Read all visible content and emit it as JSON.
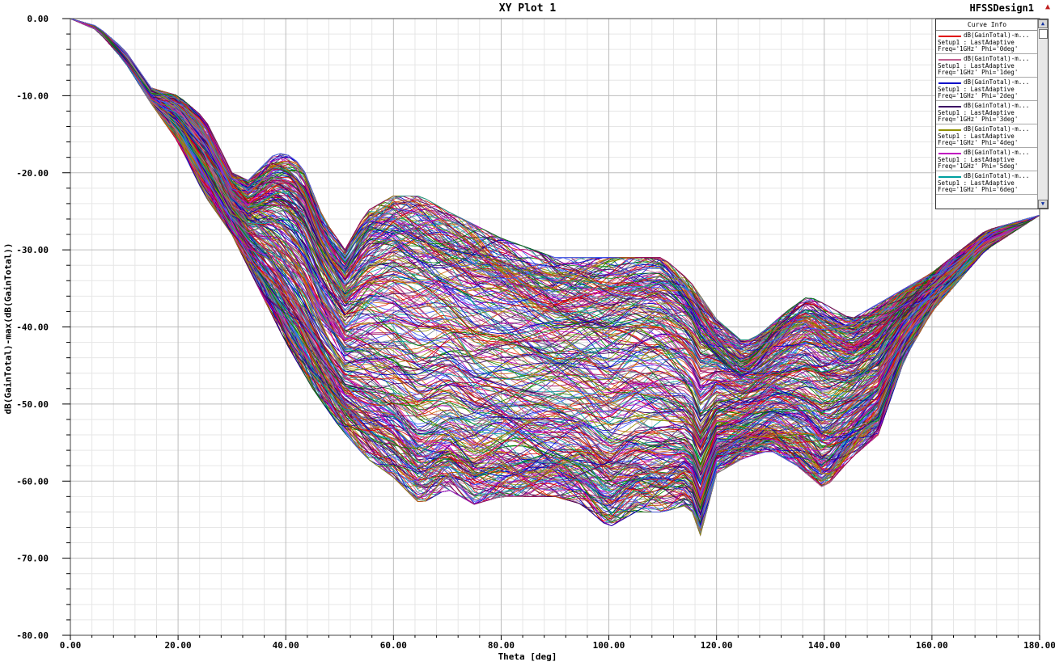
{
  "header": {
    "title": "XY Plot 1",
    "design": "HFSSDesign1",
    "corner_icon": "triangle-up-icon"
  },
  "chart_data": {
    "type": "line",
    "title": "XY Plot 1",
    "xlabel": "Theta [deg]",
    "ylabel": "dB(GainTotal)-max(dB(GainTotal))",
    "xlim": [
      0,
      180
    ],
    "ylim": [
      -80,
      0
    ],
    "x_ticks": [
      "0.00",
      "20.00",
      "40.00",
      "60.00",
      "80.00",
      "100.00",
      "120.00",
      "140.00",
      "160.00",
      "180.00"
    ],
    "y_ticks": [
      "0.00",
      "-10.00",
      "-20.00",
      "-30.00",
      "-40.00",
      "-50.00",
      "-60.00",
      "-70.00",
      "-80.00"
    ],
    "grid": true,
    "legend_position": "top-right",
    "series_count": 360,
    "upper_envelope": {
      "x": [
        0,
        5,
        10,
        15,
        20,
        25,
        30,
        33,
        38,
        40,
        43,
        47,
        51,
        55,
        60,
        65,
        70,
        80,
        90,
        100,
        110,
        115,
        120,
        125,
        128,
        133,
        137,
        140,
        145,
        150,
        160,
        170,
        180
      ],
      "y": [
        0,
        -1,
        -4,
        -9,
        -10,
        -13,
        -20,
        -21,
        -17.5,
        -17.5,
        -19,
        -26,
        -30,
        -25,
        -23,
        -23,
        -25,
        -28.5,
        -31,
        -31,
        -31,
        -34,
        -39,
        -42,
        -41,
        -38,
        -36,
        -37,
        -39,
        -37,
        -33,
        -27.5,
        -25.5
      ]
    },
    "lower_envelope": {
      "x": [
        0,
        5,
        10,
        15,
        20,
        25,
        30,
        35,
        40,
        45,
        50,
        55,
        60,
        65,
        70,
        75,
        80,
        85,
        90,
        95,
        100,
        105,
        110,
        115,
        117,
        120,
        125,
        130,
        135,
        140,
        145,
        150,
        155,
        160,
        170,
        180
      ],
      "y": [
        0,
        -1.5,
        -5.5,
        -11,
        -16,
        -23,
        -28,
        -35,
        -42,
        -48,
        -53,
        -57,
        -59.5,
        -63,
        -61,
        -63,
        -62,
        -62,
        -62,
        -63,
        -66,
        -64,
        -64,
        -63,
        -67,
        -59,
        -57,
        -56,
        -58,
        -61,
        -57,
        -54,
        -44,
        -38,
        -30,
        -25.5
      ]
    },
    "series": [
      {
        "name": "dB(GainTotal)-m...",
        "setup": "Setup1 : LastAdaptive",
        "freq": "Freq='1GHz' Phi='0deg'",
        "color": "#e00000"
      },
      {
        "name": "dB(GainTotal)-m...",
        "setup": "Setup1 : LastAdaptive",
        "freq": "Freq='1GHz' Phi='1deg'",
        "color": "#c06090"
      },
      {
        "name": "dB(GainTotal)-m...",
        "setup": "Setup1 : LastAdaptive",
        "freq": "Freq='1GHz' Phi='2deg'",
        "color": "#0000c8"
      },
      {
        "name": "dB(GainTotal)-m...",
        "setup": "Setup1 : LastAdaptive",
        "freq": "Freq='1GHz' Phi='3deg'",
        "color": "#3c0064"
      },
      {
        "name": "dB(GainTotal)-m...",
        "setup": "Setup1 : LastAdaptive",
        "freq": "Freq='1GHz' Phi='4deg'",
        "color": "#909000"
      },
      {
        "name": "dB(GainTotal)-m...",
        "setup": "Setup1 : LastAdaptive",
        "freq": "Freq='1GHz' Phi='5deg'",
        "color": "#c000c0"
      },
      {
        "name": "dB(GainTotal)-m...",
        "setup": "Setup1 : LastAdaptive",
        "freq": "Freq='1GHz' Phi='6deg'",
        "color": "#00a0a0"
      }
    ],
    "palette": [
      "#e00000",
      "#c06090",
      "#0000c8",
      "#3c0064",
      "#909000",
      "#c000c0",
      "#00a0a0",
      "#d06000",
      "#708090",
      "#008000",
      "#a00060",
      "#4060ff"
    ]
  },
  "legend": {
    "title": "Curve Info",
    "scroll_up_icon": "chevron-up-icon",
    "scroll_down_icon": "chevron-down-icon"
  }
}
